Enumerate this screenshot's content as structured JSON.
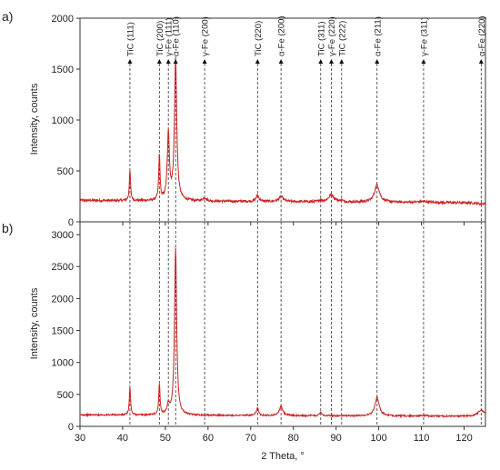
{
  "chart_data": [
    {
      "panel_label": "a)",
      "type": "line",
      "xlabel": "",
      "ylabel": "Intensity, counts",
      "xlim": [
        30,
        125
      ],
      "ylim": [
        0,
        2000
      ],
      "yticks": [
        0,
        500,
        1000,
        1500,
        2000
      ],
      "grid": false,
      "series": [
        {
          "color": "#cc2222",
          "baseline": 210,
          "peaks": [
            {
              "x": 41.7,
              "y": 500,
              "w": 0.18
            },
            {
              "x": 48.6,
              "y": 660,
              "w": 0.18
            },
            {
              "x": 50.7,
              "y": 860,
              "w": 0.3
            },
            {
              "x": 52.4,
              "y": 1600,
              "w": 0.32
            },
            {
              "x": 59.2,
              "y": 240,
              "w": 0.5
            },
            {
              "x": 71.6,
              "y": 270,
              "w": 0.4
            },
            {
              "x": 77.1,
              "y": 260,
              "w": 0.6
            },
            {
              "x": 86.4,
              "y": 230,
              "w": 0.3
            },
            {
              "x": 88.9,
              "y": 280,
              "w": 0.8
            },
            {
              "x": 91.3,
              "y": 225,
              "w": 0.3
            },
            {
              "x": 99.6,
              "y": 380,
              "w": 0.7
            },
            {
              "x": 110.5,
              "y": 220,
              "w": 1.5
            },
            {
              "x": 124.0,
              "y": 200,
              "w": 1.0
            }
          ]
        }
      ],
      "reference_lines": [
        {
          "x": 41.7,
          "label": "TiC (111)"
        },
        {
          "x": 48.6,
          "label": "TiC (200)"
        },
        {
          "x": 50.7,
          "label": "γ-Fe (111)"
        },
        {
          "x": 52.4,
          "label": "α-Fe (110)"
        },
        {
          "x": 59.2,
          "label": "γ-Fe (200)"
        },
        {
          "x": 71.6,
          "label": "TiC (220)"
        },
        {
          "x": 77.1,
          "label": "α-Fe (200)"
        },
        {
          "x": 86.4,
          "label": "TiC (311)"
        },
        {
          "x": 88.9,
          "label": "γ-Fe (220)"
        },
        {
          "x": 91.3,
          "label": "TiC (222)"
        },
        {
          "x": 99.6,
          "label": "α-Fe (211)"
        },
        {
          "x": 110.5,
          "label": "γ-Fe (311)"
        },
        {
          "x": 124.0,
          "label": "α-Fe (220)"
        }
      ]
    },
    {
      "panel_label": "b)",
      "type": "line",
      "xlabel": "2 Theta, °",
      "ylabel": "Intensity, counts",
      "xlim": [
        30,
        125
      ],
      "xticks": [
        30,
        40,
        50,
        60,
        70,
        80,
        90,
        100,
        110,
        120
      ],
      "ylim": [
        0,
        3200
      ],
      "yticks": [
        0,
        500,
        1000,
        1500,
        2000,
        2500,
        3000
      ],
      "grid": false,
      "series": [
        {
          "color": "#cc2222",
          "baseline": 180,
          "peaks": [
            {
              "x": 41.7,
              "y": 610,
              "w": 0.18
            },
            {
              "x": 48.6,
              "y": 670,
              "w": 0.18
            },
            {
              "x": 50.7,
              "y": 330,
              "w": 0.3
            },
            {
              "x": 52.4,
              "y": 2800,
              "w": 0.3
            },
            {
              "x": 71.6,
              "y": 300,
              "w": 0.3
            },
            {
              "x": 77.1,
              "y": 320,
              "w": 0.5
            },
            {
              "x": 86.4,
              "y": 240,
              "w": 0.3
            },
            {
              "x": 99.6,
              "y": 470,
              "w": 0.6
            },
            {
              "x": 110.5,
              "y": 190,
              "w": 1.2
            },
            {
              "x": 124.0,
              "y": 280,
              "w": 0.9
            }
          ]
        }
      ]
    }
  ]
}
